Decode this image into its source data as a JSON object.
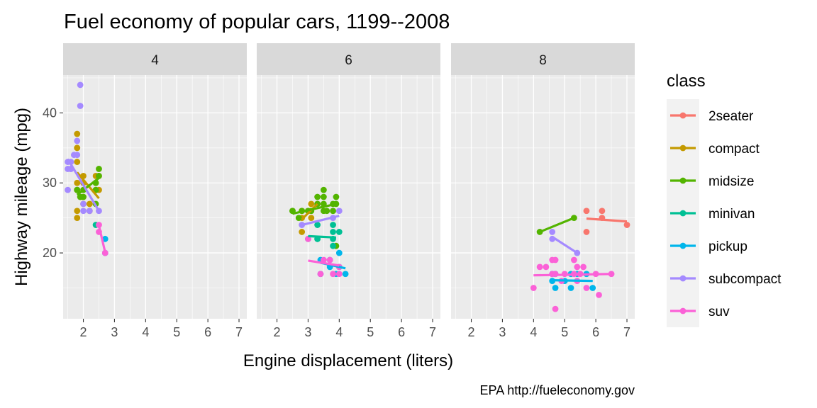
{
  "chart_data": {
    "type": "scatter",
    "title": "Fuel economy of popular cars, 1199--2008",
    "caption": "EPA http://fueleconomy.gov",
    "xlabel": "Engine displacement (liters)",
    "ylabel": "Highway mileage (mpg)",
    "xlim": [
      1.35,
      7.25
    ],
    "ylim": [
      10.6,
      45.4
    ],
    "x_ticks": [
      2,
      3,
      4,
      5,
      6,
      7
    ],
    "y_ticks": [
      20,
      30,
      40
    ],
    "grid": true,
    "legend": {
      "title": "class",
      "position": "right"
    },
    "facets": [
      {
        "label": "4"
      },
      {
        "label": "6"
      },
      {
        "label": "8"
      }
    ],
    "series": [
      {
        "name": "2seater",
        "color": "#F8766D",
        "points": [
          {
            "facet": 2,
            "x": 5.7,
            "y": 26
          },
          {
            "facet": 2,
            "x": 5.7,
            "y": 23
          },
          {
            "facet": 2,
            "x": 6.2,
            "y": 26
          },
          {
            "facet": 2,
            "x": 6.2,
            "y": 25
          },
          {
            "facet": 2,
            "x": 7.0,
            "y": 24
          }
        ],
        "trend": [
          {
            "facet": 2,
            "x1": 5.7,
            "y1": 24.9,
            "x2": 7.0,
            "y2": 24.5
          }
        ]
      },
      {
        "name": "compact",
        "color": "#C49A00",
        "points": [
          {
            "facet": 0,
            "x": 1.8,
            "y": 29
          },
          {
            "facet": 0,
            "x": 1.8,
            "y": 29
          },
          {
            "facet": 0,
            "x": 2.0,
            "y": 31
          },
          {
            "facet": 0,
            "x": 2.0,
            "y": 30
          },
          {
            "facet": 0,
            "x": 1.8,
            "y": 26
          },
          {
            "facet": 0,
            "x": 1.8,
            "y": 25
          },
          {
            "facet": 0,
            "x": 2.0,
            "y": 28
          },
          {
            "facet": 0,
            "x": 2.0,
            "y": 27
          },
          {
            "facet": 0,
            "x": 1.8,
            "y": 33
          },
          {
            "facet": 0,
            "x": 1.8,
            "y": 35
          },
          {
            "facet": 0,
            "x": 1.8,
            "y": 37
          },
          {
            "facet": 0,
            "x": 1.8,
            "y": 35
          },
          {
            "facet": 0,
            "x": 1.8,
            "y": 30
          },
          {
            "facet": 0,
            "x": 2.4,
            "y": 31
          },
          {
            "facet": 0,
            "x": 2.4,
            "y": 29
          },
          {
            "facet": 0,
            "x": 2.5,
            "y": 31
          },
          {
            "facet": 0,
            "x": 2.5,
            "y": 29
          },
          {
            "facet": 0,
            "x": 2.2,
            "y": 26
          },
          {
            "facet": 0,
            "x": 2.2,
            "y": 27
          },
          {
            "facet": 0,
            "x": 2.4,
            "y": 30
          },
          {
            "facet": 1,
            "x": 2.8,
            "y": 26
          },
          {
            "facet": 1,
            "x": 2.8,
            "y": 23
          },
          {
            "facet": 1,
            "x": 3.1,
            "y": 25
          },
          {
            "facet": 1,
            "x": 3.1,
            "y": 27
          },
          {
            "facet": 1,
            "x": 3.3,
            "y": 27
          },
          {
            "facet": 1,
            "x": 2.8,
            "y": 25
          },
          {
            "facet": 1,
            "x": 3.0,
            "y": 26
          }
        ],
        "trend": [
          {
            "facet": 0,
            "x1": 1.8,
            "y1": 31.5,
            "x2": 2.5,
            "y2": 27.8
          },
          {
            "facet": 1,
            "x1": 2.8,
            "y1": 24.8,
            "x2": 3.3,
            "y2": 27.0
          }
        ]
      },
      {
        "name": "midsize",
        "color": "#53B400",
        "points": [
          {
            "facet": 0,
            "x": 1.8,
            "y": 29
          },
          {
            "facet": 0,
            "x": 1.8,
            "y": 29
          },
          {
            "facet": 0,
            "x": 2.0,
            "y": 28
          },
          {
            "facet": 0,
            "x": 2.0,
            "y": 29
          },
          {
            "facet": 0,
            "x": 1.9,
            "y": 28
          },
          {
            "facet": 0,
            "x": 2.4,
            "y": 30
          },
          {
            "facet": 0,
            "x": 2.4,
            "y": 27
          },
          {
            "facet": 0,
            "x": 2.5,
            "y": 32
          },
          {
            "facet": 0,
            "x": 2.5,
            "y": 31
          },
          {
            "facet": 0,
            "x": 2.4,
            "y": 29
          },
          {
            "facet": 1,
            "x": 2.5,
            "y": 26
          },
          {
            "facet": 1,
            "x": 2.5,
            "y": 26
          },
          {
            "facet": 1,
            "x": 2.7,
            "y": 25
          },
          {
            "facet": 1,
            "x": 2.8,
            "y": 26
          },
          {
            "facet": 1,
            "x": 3.0,
            "y": 26
          },
          {
            "facet": 1,
            "x": 3.1,
            "y": 26
          },
          {
            "facet": 1,
            "x": 3.3,
            "y": 28
          },
          {
            "facet": 1,
            "x": 3.3,
            "y": 27
          },
          {
            "facet": 1,
            "x": 3.5,
            "y": 29
          },
          {
            "facet": 1,
            "x": 3.5,
            "y": 28
          },
          {
            "facet": 1,
            "x": 3.5,
            "y": 27
          },
          {
            "facet": 1,
            "x": 3.5,
            "y": 26
          },
          {
            "facet": 1,
            "x": 3.6,
            "y": 26
          },
          {
            "facet": 1,
            "x": 3.8,
            "y": 27
          },
          {
            "facet": 1,
            "x": 3.8,
            "y": 26
          },
          {
            "facet": 1,
            "x": 3.9,
            "y": 28
          },
          {
            "facet": 1,
            "x": 3.9,
            "y": 27
          },
          {
            "facet": 1,
            "x": 3.9,
            "y": 21
          },
          {
            "facet": 2,
            "x": 4.2,
            "y": 23
          },
          {
            "facet": 2,
            "x": 5.3,
            "y": 25
          }
        ],
        "trend": [
          {
            "facet": 0,
            "x1": 1.8,
            "y1": 28.3,
            "x2": 2.5,
            "y2": 30.7
          },
          {
            "facet": 1,
            "x1": 2.5,
            "y1": 25.6,
            "x2": 3.9,
            "y2": 27.0
          },
          {
            "facet": 2,
            "x1": 4.2,
            "y1": 23.0,
            "x2": 5.3,
            "y2": 25.0
          }
        ]
      },
      {
        "name": "minivan",
        "color": "#00C094",
        "points": [
          {
            "facet": 0,
            "x": 2.4,
            "y": 24
          },
          {
            "facet": 1,
            "x": 3.0,
            "y": 22
          },
          {
            "facet": 1,
            "x": 3.3,
            "y": 22
          },
          {
            "facet": 1,
            "x": 3.3,
            "y": 22
          },
          {
            "facet": 1,
            "x": 3.3,
            "y": 24
          },
          {
            "facet": 1,
            "x": 3.8,
            "y": 24
          },
          {
            "facet": 1,
            "x": 3.8,
            "y": 23
          },
          {
            "facet": 1,
            "x": 3.8,
            "y": 22
          },
          {
            "facet": 1,
            "x": 4.0,
            "y": 23
          },
          {
            "facet": 1,
            "x": 3.8,
            "y": 21
          }
        ],
        "trend": [
          {
            "facet": 1,
            "x1": 3.0,
            "y1": 22.4,
            "x2": 3.9,
            "y2": 22.2
          }
        ]
      },
      {
        "name": "pickup",
        "color": "#00B6EB",
        "points": [
          {
            "facet": 0,
            "x": 2.7,
            "y": 20
          },
          {
            "facet": 0,
            "x": 2.7,
            "y": 22
          },
          {
            "facet": 1,
            "x": 3.4,
            "y": 17
          },
          {
            "facet": 1,
            "x": 3.4,
            "y": 19
          },
          {
            "facet": 1,
            "x": 3.7,
            "y": 18
          },
          {
            "facet": 1,
            "x": 3.7,
            "y": 19
          },
          {
            "facet": 1,
            "x": 3.9,
            "y": 17
          },
          {
            "facet": 1,
            "x": 4.0,
            "y": 20
          },
          {
            "facet": 1,
            "x": 4.0,
            "y": 18
          },
          {
            "facet": 1,
            "x": 4.2,
            "y": 17
          },
          {
            "facet": 2,
            "x": 4.6,
            "y": 16
          },
          {
            "facet": 2,
            "x": 4.7,
            "y": 17
          },
          {
            "facet": 2,
            "x": 4.7,
            "y": 15
          },
          {
            "facet": 2,
            "x": 5.2,
            "y": 17
          },
          {
            "facet": 2,
            "x": 5.2,
            "y": 15
          },
          {
            "facet": 2,
            "x": 5.4,
            "y": 17
          },
          {
            "facet": 2,
            "x": 5.7,
            "y": 17
          },
          {
            "facet": 2,
            "x": 5.9,
            "y": 15
          },
          {
            "facet": 2,
            "x": 4.6,
            "y": 17
          },
          {
            "facet": 2,
            "x": 5.0,
            "y": 16
          }
        ],
        "trend": [
          {
            "facet": 1,
            "x1": 3.4,
            "y1": 18.6,
            "x2": 4.2,
            "y2": 17.8
          },
          {
            "facet": 2,
            "x1": 4.6,
            "y1": 16.1,
            "x2": 5.9,
            "y2": 16.0
          }
        ]
      },
      {
        "name": "subcompact",
        "color": "#A58AFF",
        "points": [
          {
            "facet": 0,
            "x": 1.5,
            "y": 29
          },
          {
            "facet": 0,
            "x": 1.5,
            "y": 32
          },
          {
            "facet": 0,
            "x": 1.5,
            "y": 33
          },
          {
            "facet": 0,
            "x": 1.6,
            "y": 32
          },
          {
            "facet": 0,
            "x": 1.6,
            "y": 33
          },
          {
            "facet": 0,
            "x": 1.6,
            "y": 32
          },
          {
            "facet": 0,
            "x": 1.7,
            "y": 34
          },
          {
            "facet": 0,
            "x": 1.8,
            "y": 36
          },
          {
            "facet": 0,
            "x": 1.8,
            "y": 34
          },
          {
            "facet": 0,
            "x": 1.9,
            "y": 44
          },
          {
            "facet": 0,
            "x": 1.9,
            "y": 41
          },
          {
            "facet": 0,
            "x": 2.0,
            "y": 26
          },
          {
            "facet": 0,
            "x": 2.0,
            "y": 27
          },
          {
            "facet": 0,
            "x": 2.2,
            "y": 26
          },
          {
            "facet": 0,
            "x": 2.5,
            "y": 26
          },
          {
            "facet": 1,
            "x": 2.8,
            "y": 24
          },
          {
            "facet": 1,
            "x": 3.8,
            "y": 25
          },
          {
            "facet": 1,
            "x": 4.0,
            "y": 26
          },
          {
            "facet": 2,
            "x": 4.6,
            "y": 23
          },
          {
            "facet": 2,
            "x": 4.6,
            "y": 22
          },
          {
            "facet": 2,
            "x": 5.4,
            "y": 20
          }
        ],
        "trend": [
          {
            "facet": 0,
            "x1": 1.5,
            "y1": 33.4,
            "x2": 2.5,
            "y2": 26.0
          },
          {
            "facet": 1,
            "x1": 2.8,
            "y1": 24.0,
            "x2": 4.0,
            "y2": 25.3
          },
          {
            "facet": 2,
            "x1": 4.6,
            "y1": 22.3,
            "x2": 5.4,
            "y2": 20.0
          }
        ]
      },
      {
        "name": "suv",
        "color": "#FB61D7",
        "points": [
          {
            "facet": 0,
            "x": 2.5,
            "y": 24
          },
          {
            "facet": 0,
            "x": 2.5,
            "y": 23
          },
          {
            "facet": 0,
            "x": 2.7,
            "y": 20
          },
          {
            "facet": 1,
            "x": 3.0,
            "y": 22
          },
          {
            "facet": 1,
            "x": 3.4,
            "y": 17
          },
          {
            "facet": 1,
            "x": 3.5,
            "y": 19
          },
          {
            "facet": 1,
            "x": 3.7,
            "y": 19
          },
          {
            "facet": 1,
            "x": 4.0,
            "y": 17
          },
          {
            "facet": 1,
            "x": 4.0,
            "y": 18
          },
          {
            "facet": 1,
            "x": 3.8,
            "y": 17
          },
          {
            "facet": 2,
            "x": 4.0,
            "y": 15
          },
          {
            "facet": 2,
            "x": 4.2,
            "y": 18
          },
          {
            "facet": 2,
            "x": 4.4,
            "y": 18
          },
          {
            "facet": 2,
            "x": 4.6,
            "y": 19
          },
          {
            "facet": 2,
            "x": 4.7,
            "y": 19
          },
          {
            "facet": 2,
            "x": 4.7,
            "y": 12
          },
          {
            "facet": 2,
            "x": 4.7,
            "y": 17
          },
          {
            "facet": 2,
            "x": 5.0,
            "y": 17
          },
          {
            "facet": 2,
            "x": 5.3,
            "y": 17
          },
          {
            "facet": 2,
            "x": 5.3,
            "y": 19
          },
          {
            "facet": 2,
            "x": 5.4,
            "y": 18
          },
          {
            "facet": 2,
            "x": 5.4,
            "y": 16
          },
          {
            "facet": 2,
            "x": 5.6,
            "y": 18
          },
          {
            "facet": 2,
            "x": 5.7,
            "y": 15
          },
          {
            "facet": 2,
            "x": 6.0,
            "y": 17
          },
          {
            "facet": 2,
            "x": 6.1,
            "y": 14
          },
          {
            "facet": 2,
            "x": 6.5,
            "y": 17
          },
          {
            "facet": 2,
            "x": 4.6,
            "y": 17
          },
          {
            "facet": 2,
            "x": 4.9,
            "y": 16
          },
          {
            "facet": 2,
            "x": 5.5,
            "y": 17
          }
        ],
        "trend": [
          {
            "facet": 0,
            "x1": 2.5,
            "y1": 23.9,
            "x2": 2.7,
            "y2": 20.1
          },
          {
            "facet": 1,
            "x1": 3.0,
            "y1": 18.9,
            "x2": 4.0,
            "y2": 18.2
          },
          {
            "facet": 2,
            "x1": 4.0,
            "y1": 16.8,
            "x2": 6.5,
            "y2": 17.0
          }
        ]
      }
    ]
  }
}
